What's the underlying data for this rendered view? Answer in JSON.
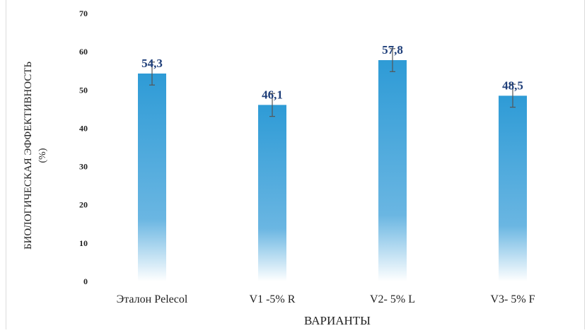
{
  "chart_data": {
    "type": "bar",
    "title": "",
    "xlabel": "ВАРИАНТЫ",
    "ylabel_line1": "БИОЛОГИЧЕСКАЯ ЭФФЕКТИВНОСТЬ",
    "ylabel_line2": "(%)",
    "categories": [
      "Эталон Pelecol",
      "V1 -5% R",
      "V2- 5% L",
      "V3- 5% F"
    ],
    "values": [
      54.3,
      46.1,
      57.8,
      48.5
    ],
    "value_labels": [
      "54,3",
      "46,1",
      "57,8",
      "48,5"
    ],
    "error": [
      3,
      3,
      3,
      3
    ],
    "ylim": [
      0,
      70
    ],
    "yticks": [
      0,
      10,
      20,
      30,
      40,
      50,
      60,
      70
    ],
    "grid": false,
    "legend": "none",
    "colors": {
      "bar_top": "#2e9bd6",
      "bar_mid": "#6ab6e2",
      "bar_bottom": "#ffffff",
      "value_label": "#1f3f7a",
      "axis_text": "#222222",
      "error_bar": "#555555"
    }
  }
}
